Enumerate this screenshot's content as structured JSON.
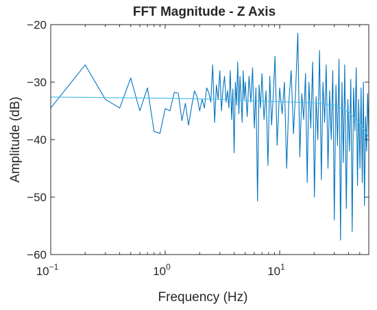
{
  "chart_data": {
    "type": "line",
    "title": "FFT Magnitude - Z Axis",
    "xlabel": "Frequency (Hz)",
    "ylabel": "Amplitude (dB)",
    "xscale": "log",
    "xlim": [
      0.1,
      60
    ],
    "ylim": [
      -60,
      -20
    ],
    "grid": false,
    "xticks": [
      {
        "value": 0.1,
        "base": "10",
        "exp": "−1"
      },
      {
        "value": 1,
        "base": "10",
        "exp": "0"
      },
      {
        "value": 10,
        "base": "10",
        "exp": "1"
      }
    ],
    "yticks": [
      {
        "value": -60,
        "label": "−60"
      },
      {
        "value": -50,
        "label": "−50"
      },
      {
        "value": -40,
        "label": "−40"
      },
      {
        "value": -30,
        "label": "−30"
      },
      {
        "value": -20,
        "label": "−20"
      }
    ],
    "series": [
      {
        "color": "#0072BD",
        "style": "raw",
        "points": [
          [
            0.1,
            -34.5
          ],
          [
            0.2,
            -27.0
          ],
          [
            0.3,
            -33.0
          ],
          [
            0.4,
            -34.5
          ],
          [
            0.5,
            -29.3
          ],
          [
            0.6,
            -35.0
          ],
          [
            0.7,
            -31.0
          ],
          [
            0.8,
            -38.6
          ],
          [
            0.9,
            -38.9
          ],
          [
            1.0,
            -34.6
          ],
          [
            1.1,
            -35.0
          ],
          [
            1.2,
            -31.8
          ],
          [
            1.3,
            -31.9
          ],
          [
            1.4,
            -36.7
          ],
          [
            1.5,
            -33.7
          ],
          [
            1.6,
            -37.5
          ],
          [
            1.7,
            -34.3
          ],
          [
            1.8,
            -31.5
          ],
          [
            1.9,
            -32.6
          ],
          [
            2.0,
            -35.0
          ],
          [
            2.1,
            -33.0
          ],
          [
            2.2,
            -34.5
          ],
          [
            2.3,
            -31.0
          ],
          [
            2.4,
            -31.8
          ],
          [
            2.5,
            -33.5
          ],
          [
            2.6,
            -27.0
          ],
          [
            2.7,
            -37.0
          ],
          [
            2.8,
            -30.5
          ],
          [
            2.9,
            -33.0
          ],
          [
            3.0,
            -28.0
          ],
          [
            3.1,
            -35.0
          ],
          [
            3.2,
            -31.0
          ],
          [
            3.3,
            -29.0
          ],
          [
            3.4,
            -33.5
          ],
          [
            3.5,
            -31.5
          ],
          [
            3.6,
            -34.5
          ],
          [
            3.7,
            -28.0
          ],
          [
            3.8,
            -36.5
          ],
          [
            3.9,
            -31.2
          ],
          [
            4.0,
            -42.3
          ],
          [
            4.1,
            -30.0
          ],
          [
            4.2,
            -34.0
          ],
          [
            4.3,
            -26.5
          ],
          [
            4.4,
            -35.5
          ],
          [
            4.5,
            -29.0
          ],
          [
            4.6,
            -32.5
          ],
          [
            4.7,
            -37.0
          ],
          [
            4.8,
            -28.0
          ],
          [
            4.9,
            -33.0
          ],
          [
            5.0,
            -30.0
          ],
          [
            5.2,
            -36.0
          ],
          [
            5.4,
            -29.0
          ],
          [
            5.6,
            -33.5
          ],
          [
            5.8,
            -27.5
          ],
          [
            6.0,
            -38.0
          ],
          [
            6.2,
            -31.0
          ],
          [
            6.4,
            -50.7
          ],
          [
            6.6,
            -30.5
          ],
          [
            6.8,
            -34.5
          ],
          [
            7.0,
            -28.5
          ],
          [
            7.3,
            -36.5
          ],
          [
            7.6,
            -31.5
          ],
          [
            7.9,
            -44.5
          ],
          [
            8.2,
            -29.0
          ],
          [
            8.5,
            -37.5
          ],
          [
            8.8,
            -32.0
          ],
          [
            9.1,
            -25.5
          ],
          [
            9.5,
            -41.0
          ],
          [
            10.0,
            -31.0
          ],
          [
            10.5,
            -35.5
          ],
          [
            11.0,
            -30.0
          ],
          [
            11.5,
            -45.0
          ],
          [
            12.0,
            -33.5
          ],
          [
            12.6,
            -28.0
          ],
          [
            13.2,
            -39.0
          ],
          [
            13.8,
            -31.0
          ],
          [
            14.4,
            -21.5
          ],
          [
            15.0,
            -43.0
          ],
          [
            15.6,
            -32.0
          ],
          [
            16.2,
            -36.5
          ],
          [
            16.8,
            -28.5
          ],
          [
            17.4,
            -47.5
          ],
          [
            18.0,
            -30.0
          ],
          [
            18.7,
            -38.0
          ],
          [
            19.4,
            -26.5
          ],
          [
            20.1,
            -50.0
          ],
          [
            20.8,
            -32.5
          ],
          [
            21.5,
            -40.0
          ],
          [
            22.3,
            -24.5
          ],
          [
            23.1,
            -47.0
          ],
          [
            23.9,
            -30.0
          ],
          [
            24.7,
            -37.0
          ],
          [
            25.5,
            -27.0
          ],
          [
            26.4,
            -45.0
          ],
          [
            27.3,
            -31.5
          ],
          [
            28.2,
            -40.0
          ],
          [
            29.1,
            -28.0
          ],
          [
            30.0,
            -54.0
          ],
          [
            31.0,
            -30.5
          ],
          [
            32.0,
            -41.0
          ],
          [
            33.0,
            -26.0
          ],
          [
            34.0,
            -57.5
          ],
          [
            35.0,
            -30.0
          ],
          [
            36.0,
            -44.0
          ],
          [
            37.0,
            -27.0
          ],
          [
            38.2,
            -52.0
          ],
          [
            39.4,
            -33.0
          ],
          [
            40.6,
            -42.0
          ],
          [
            41.8,
            -29.5
          ],
          [
            43.0,
            -56.0
          ],
          [
            44.2,
            -31.0
          ],
          [
            45.4,
            -38.5
          ],
          [
            46.6,
            -27.5
          ],
          [
            47.8,
            -48.0
          ],
          [
            49.0,
            -33.0
          ],
          [
            50.2,
            -45.0
          ],
          [
            51.4,
            -31.0
          ],
          [
            52.6,
            -47.5
          ],
          [
            53.8,
            -30.0
          ],
          [
            55.0,
            -51.5
          ],
          [
            56.2,
            -36.0
          ],
          [
            57.4,
            -42.0
          ],
          [
            58.6,
            -32.0
          ],
          [
            60.0,
            -39.5
          ]
        ]
      },
      {
        "color": "#4DBEEE",
        "style": "smoothed",
        "points": [
          [
            0.1,
            -32.6
          ],
          [
            0.3,
            -32.7
          ],
          [
            1.0,
            -32.8
          ],
          [
            3.0,
            -33.0
          ],
          [
            5.0,
            -33.2
          ],
          [
            10.0,
            -33.4
          ],
          [
            20.0,
            -33.6
          ],
          [
            30.0,
            -34.0
          ],
          [
            40.0,
            -35.2
          ],
          [
            50.0,
            -37.2
          ],
          [
            60.0,
            -39.5
          ]
        ]
      }
    ]
  }
}
